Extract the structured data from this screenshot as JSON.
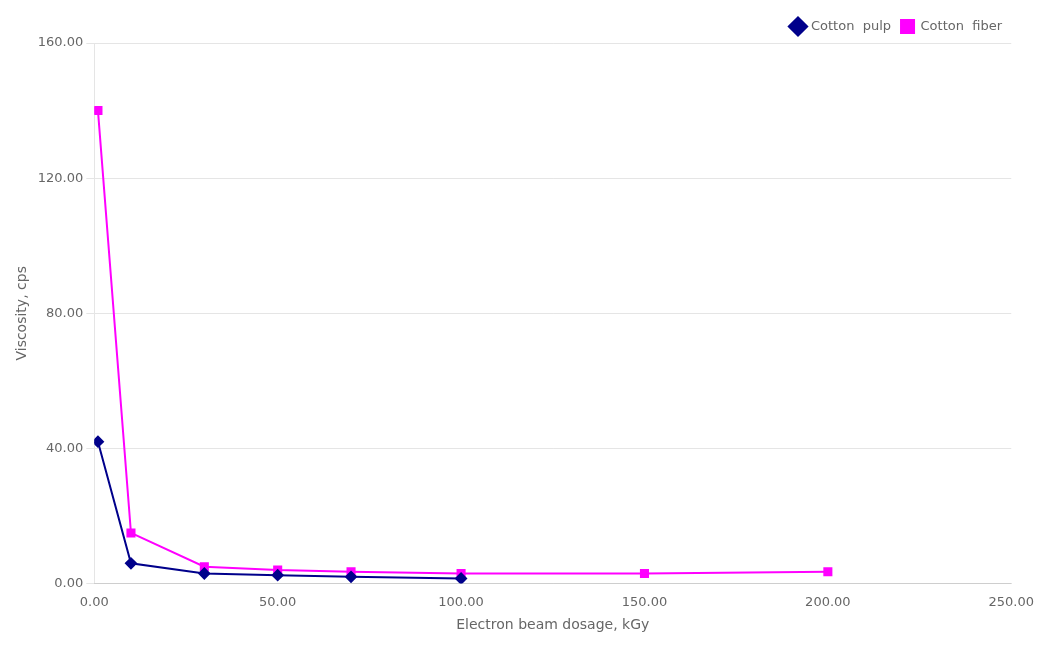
{
  "chart_data": {
    "type": "line",
    "xlabel": "Electron beam dosage, kGy",
    "ylabel": "Viscosity, cps",
    "series": [
      {
        "name": "Cotton  pulp",
        "color": "#00008B",
        "marker": "diamond",
        "x": [
          1,
          10,
          30,
          50,
          70,
          100
        ],
        "values": [
          42,
          6,
          3,
          2.5,
          2,
          1.5
        ]
      },
      {
        "name": "Cotton  fiber",
        "color": "#FF00FF",
        "marker": "square",
        "x": [
          1,
          10,
          30,
          50,
          70,
          100,
          150,
          200
        ],
        "values": [
          140,
          15,
          5,
          4,
          3.5,
          3,
          3,
          3.5
        ]
      }
    ],
    "xlim": [
      0,
      250
    ],
    "ylim": [
      0,
      160
    ],
    "xticks": [
      {
        "value": 0,
        "label": "0.00"
      },
      {
        "value": 50,
        "label": "50.00"
      },
      {
        "value": 100,
        "label": "100.00"
      },
      {
        "value": 150,
        "label": "150.00"
      },
      {
        "value": 200,
        "label": "200.00"
      },
      {
        "value": 250,
        "label": "250.00"
      }
    ],
    "yticks": [
      {
        "value": 0,
        "label": "0.00"
      },
      {
        "value": 40,
        "label": "40.00"
      },
      {
        "value": 80,
        "label": "80.00"
      },
      {
        "value": 120,
        "label": "120.00"
      },
      {
        "value": 160,
        "label": "160.00"
      }
    ],
    "grid": "y",
    "legend": "upper right"
  }
}
